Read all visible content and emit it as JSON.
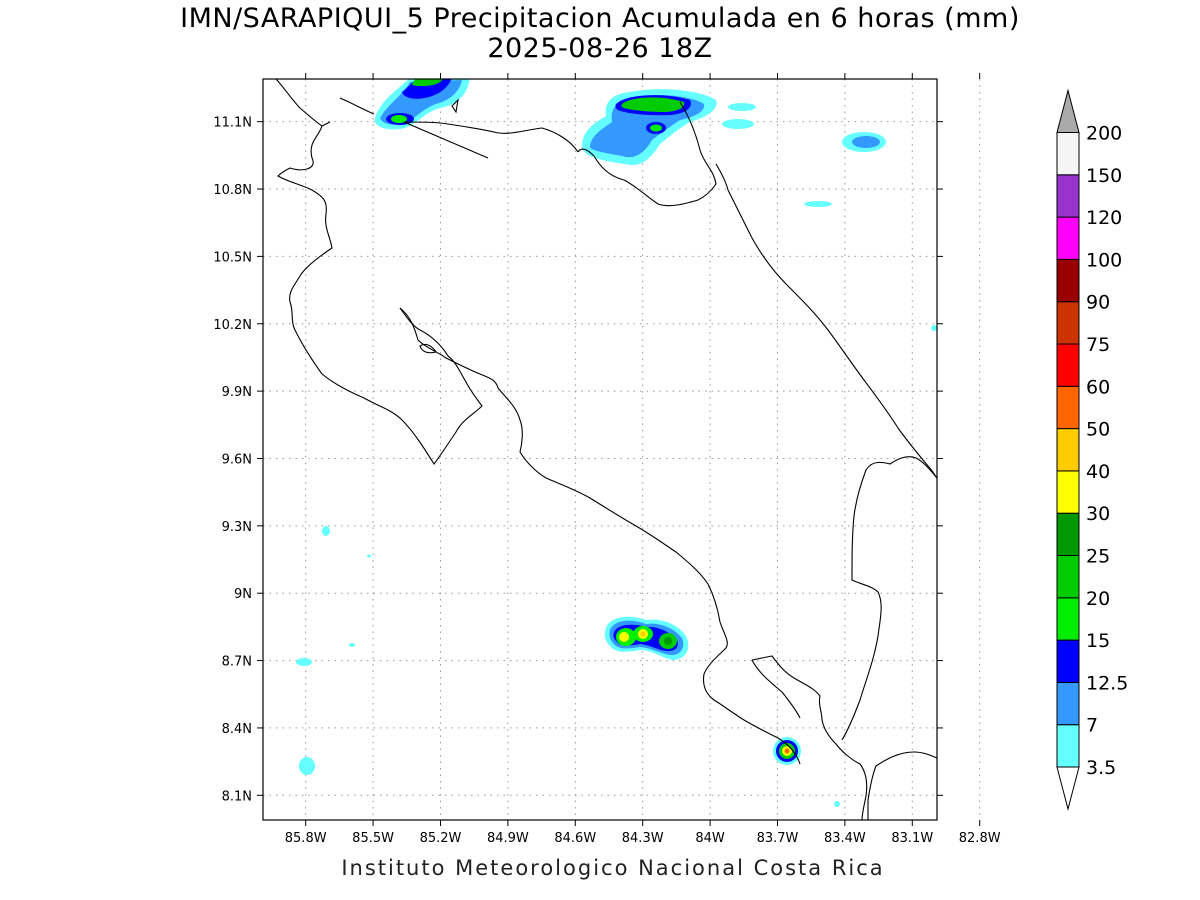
{
  "title_line1": "IMN/SARAPIQUI_5 Precipitacion Acumulada en 6 horas (mm)",
  "title_line2": "2025-08-26 18Z",
  "footer": "Instituto Meteorologico Nacional Costa Rica",
  "map": {
    "lon_range": [
      -85.99,
      -82.99
    ],
    "lat_range": [
      7.99,
      11.29
    ],
    "lon_ticks": [
      {
        "value": -85.8,
        "label": "85.8W"
      },
      {
        "value": -85.5,
        "label": "85.5W"
      },
      {
        "value": -85.2,
        "label": "85.2W"
      },
      {
        "value": -84.9,
        "label": "84.9W"
      },
      {
        "value": -84.6,
        "label": "84.6W"
      },
      {
        "value": -84.3,
        "label": "84.3W"
      },
      {
        "value": -84.0,
        "label": "84W"
      },
      {
        "value": -83.7,
        "label": "83.7W"
      },
      {
        "value": -83.4,
        "label": "83.4W"
      },
      {
        "value": -83.1,
        "label": "83.1W"
      },
      {
        "value": -82.8,
        "label": "82.8W"
      }
    ],
    "lat_ticks": [
      {
        "value": 11.1,
        "label": "11.1N"
      },
      {
        "value": 10.8,
        "label": "10.8N"
      },
      {
        "value": 10.5,
        "label": "10.5N"
      },
      {
        "value": 10.2,
        "label": "10.2N"
      },
      {
        "value": 9.9,
        "label": "9.9N"
      },
      {
        "value": 9.6,
        "label": "9.6N"
      },
      {
        "value": 9.3,
        "label": "9.3N"
      },
      {
        "value": 9.0,
        "label": "9N"
      },
      {
        "value": 8.7,
        "label": "8.7N"
      },
      {
        "value": 8.4,
        "label": "8.4N"
      },
      {
        "value": 8.1,
        "label": "8.1N"
      }
    ],
    "grid": "dotted"
  },
  "legend": {
    "levels": [
      {
        "label": "3.5",
        "color": "#66ffff"
      },
      {
        "label": "7",
        "color": "#3399ff"
      },
      {
        "label": "12.5",
        "color": "#0000ff"
      },
      {
        "label": "15",
        "color": "#00ee00"
      },
      {
        "label": "20",
        "color": "#00cc00"
      },
      {
        "label": "25",
        "color": "#009900"
      },
      {
        "label": "30",
        "color": "#ffff00"
      },
      {
        "label": "40",
        "color": "#ffcc00"
      },
      {
        "label": "50",
        "color": "#ff6600"
      },
      {
        "label": "60",
        "color": "#ff0000"
      },
      {
        "label": "75",
        "color": "#cc3300"
      },
      {
        "label": "90",
        "color": "#990000"
      },
      {
        "label": "100",
        "color": "#ff00ff"
      },
      {
        "label": "120",
        "color": "#9933cc"
      },
      {
        "label": "150",
        "color": "#f5f5f5"
      },
      {
        "label": "200",
        "color": "#aaaaaa"
      }
    ],
    "low_end_color": "#ffffff",
    "high_end_color": "#aaaaaa"
  }
}
